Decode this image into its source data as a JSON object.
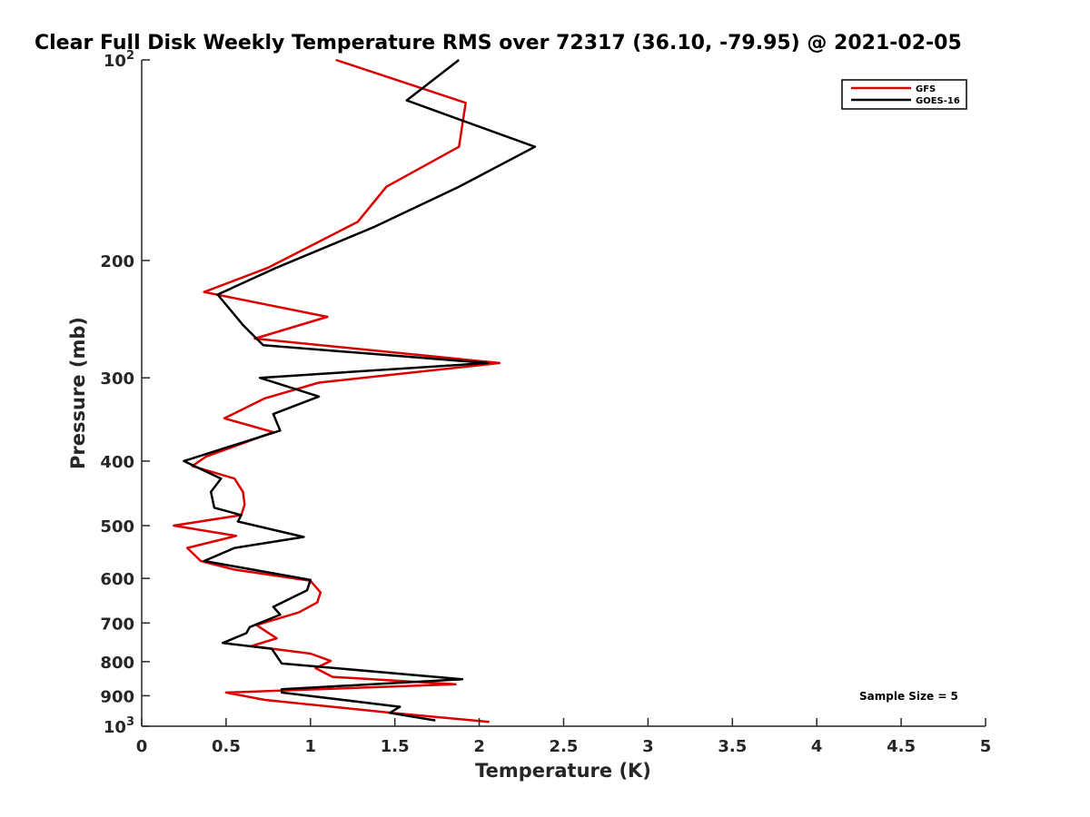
{
  "chart_data": {
    "type": "line",
    "title": "Clear Full Disk Weekly Temperature RMS over 72317 (36.10, -79.95) @ 2021-02-05",
    "xlabel": "Temperature (K)",
    "ylabel": "Pressure (mb)",
    "xlim": [
      0,
      5
    ],
    "ylim": [
      100,
      1000
    ],
    "yscale": "log",
    "yreversed": true,
    "grid": false,
    "legend_position": "top-right",
    "x_ticks": [
      {
        "v": 0,
        "label": "0"
      },
      {
        "v": 0.5,
        "label": "0.5"
      },
      {
        "v": 1,
        "label": "1"
      },
      {
        "v": 1.5,
        "label": "1.5"
      },
      {
        "v": 2,
        "label": "2"
      },
      {
        "v": 2.5,
        "label": "2.5"
      },
      {
        "v": 3,
        "label": "3"
      },
      {
        "v": 3.5,
        "label": "3.5"
      },
      {
        "v": 4,
        "label": "4"
      },
      {
        "v": 4.5,
        "label": "4.5"
      },
      {
        "v": 5,
        "label": "5"
      }
    ],
    "y_ticks": [
      {
        "v": 100,
        "base": "10",
        "exp": "2"
      },
      {
        "v": 200,
        "label": "200"
      },
      {
        "v": 300,
        "label": "300"
      },
      {
        "v": 400,
        "label": "400"
      },
      {
        "v": 500,
        "label": "500"
      },
      {
        "v": 600,
        "label": "600"
      },
      {
        "v": 700,
        "label": "700"
      },
      {
        "v": 800,
        "label": "800"
      },
      {
        "v": 900,
        "label": "900"
      },
      {
        "v": 1000,
        "base": "10",
        "exp": "3"
      }
    ],
    "series": [
      {
        "name": "GFS",
        "color": "#dd0000",
        "points": [
          [
            1.15,
            100
          ],
          [
            1.92,
            116
          ],
          [
            1.88,
            135
          ],
          [
            1.45,
            155
          ],
          [
            1.28,
            175
          ],
          [
            0.75,
            205
          ],
          [
            0.37,
            223
          ],
          [
            1.1,
            243
          ],
          [
            0.67,
            262
          ],
          [
            2.12,
            285
          ],
          [
            1.05,
            305
          ],
          [
            0.73,
            322
          ],
          [
            0.49,
            345
          ],
          [
            0.78,
            362
          ],
          [
            0.38,
            394
          ],
          [
            0.3,
            407
          ],
          [
            0.55,
            425
          ],
          [
            0.6,
            445
          ],
          [
            0.61,
            465
          ],
          [
            0.59,
            482
          ],
          [
            0.19,
            500
          ],
          [
            0.56,
            518
          ],
          [
            0.27,
            540
          ],
          [
            0.35,
            565
          ],
          [
            0.55,
            582
          ],
          [
            1.0,
            605
          ],
          [
            1.06,
            630
          ],
          [
            1.04,
            652
          ],
          [
            0.93,
            675
          ],
          [
            0.68,
            705
          ],
          [
            0.8,
            738
          ],
          [
            0.65,
            758
          ],
          [
            1.0,
            778
          ],
          [
            1.12,
            798
          ],
          [
            1.03,
            818
          ],
          [
            1.13,
            843
          ],
          [
            1.86,
            865
          ],
          [
            0.5,
            890
          ],
          [
            0.73,
            913
          ],
          [
            1.48,
            955
          ],
          [
            2.06,
            985
          ]
        ]
      },
      {
        "name": "GOES-16",
        "color": "#000000",
        "points": [
          [
            1.88,
            100
          ],
          [
            1.57,
            115
          ],
          [
            2.33,
            135
          ],
          [
            1.88,
            155
          ],
          [
            1.38,
            178
          ],
          [
            0.8,
            205
          ],
          [
            0.45,
            225
          ],
          [
            0.6,
            250
          ],
          [
            0.72,
            268
          ],
          [
            2.05,
            285
          ],
          [
            0.7,
            300
          ],
          [
            1.05,
            320
          ],
          [
            0.78,
            340
          ],
          [
            0.82,
            360
          ],
          [
            0.25,
            400
          ],
          [
            0.47,
            425
          ],
          [
            0.41,
            445
          ],
          [
            0.43,
            470
          ],
          [
            0.59,
            482
          ],
          [
            0.57,
            493
          ],
          [
            0.96,
            520
          ],
          [
            0.55,
            540
          ],
          [
            0.37,
            565
          ],
          [
            1.0,
            603
          ],
          [
            0.98,
            625
          ],
          [
            0.78,
            662
          ],
          [
            0.82,
            680
          ],
          [
            0.64,
            710
          ],
          [
            0.62,
            725
          ],
          [
            0.48,
            750
          ],
          [
            0.77,
            765
          ],
          [
            0.83,
            805
          ],
          [
            1.9,
            850
          ],
          [
            0.83,
            880
          ],
          [
            0.83,
            890
          ],
          [
            1.53,
            935
          ],
          [
            1.47,
            955
          ],
          [
            1.74,
            980
          ]
        ]
      }
    ],
    "annotation": "Sample Size = 5"
  }
}
